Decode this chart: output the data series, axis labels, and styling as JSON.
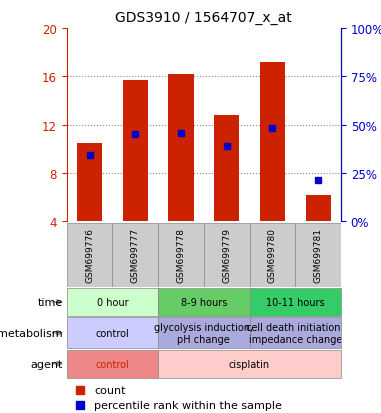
{
  "title": "GDS3910 / 1564707_x_at",
  "samples": [
    "GSM699776",
    "GSM699777",
    "GSM699778",
    "GSM699779",
    "GSM699780",
    "GSM699781"
  ],
  "bar_heights": [
    10.5,
    15.7,
    16.2,
    12.8,
    17.2,
    6.2
  ],
  "bar_base": 4.0,
  "percentile_values": [
    9.5,
    11.2,
    11.3,
    10.2,
    11.7,
    7.4
  ],
  "bar_color": "#cc2200",
  "percentile_color": "#0000cc",
  "ylim_left": [
    4,
    20
  ],
  "yticks_left": [
    4,
    8,
    12,
    16,
    20
  ],
  "yticks_right_labels": [
    "0%",
    "25%",
    "50%",
    "75%",
    "100%"
  ],
  "yticks_right_values": [
    4,
    8,
    12,
    16,
    20
  ],
  "left_axis_color": "#cc2200",
  "right_axis_color": "#0000cc",
  "grid_color": "#888888",
  "bar_width": 0.55,
  "bg_chart": "#ffffff",
  "bg_sample_labels": "#cccccc",
  "time_groups": [
    {
      "cols": [
        0,
        1
      ],
      "text": "0 hour",
      "bg": "#ccffcc"
    },
    {
      "cols": [
        2,
        3
      ],
      "text": "8-9 hours",
      "bg": "#66cc66"
    },
    {
      "cols": [
        4,
        5
      ],
      "text": "10-11 hours",
      "bg": "#33cc66"
    }
  ],
  "metab_groups": [
    {
      "cols": [
        0,
        1
      ],
      "text": "control",
      "bg": "#ccccff"
    },
    {
      "cols": [
        2,
        3
      ],
      "text": "glycolysis induction,\npH change",
      "bg": "#aaaadd"
    },
    {
      "cols": [
        4,
        5
      ],
      "text": "cell death initiation,\nimpedance change",
      "bg": "#aaaadd"
    }
  ],
  "agent_groups": [
    {
      "cols": [
        0,
        1
      ],
      "text": "control",
      "bg": "#ee8888",
      "tc": "#cc2200"
    },
    {
      "cols": [
        2,
        5
      ],
      "text": "cisplatin",
      "bg": "#ffcccc",
      "tc": "#000000"
    }
  ],
  "row_labels": [
    "time",
    "metabolism",
    "agent"
  ],
  "legend_count_color": "#cc2200",
  "legend_percentile_color": "#0000cc",
  "n_samples": 6
}
